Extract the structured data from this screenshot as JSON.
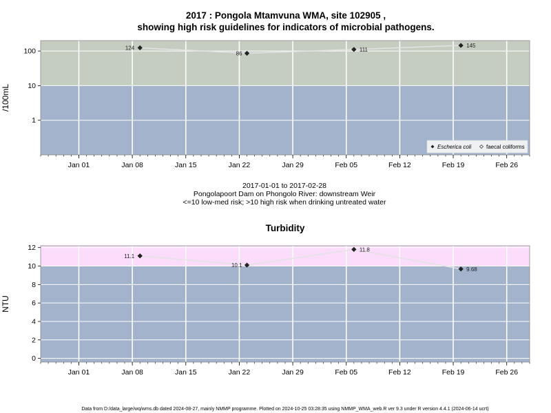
{
  "page": {
    "title_line1": "2017 : Pongola Mtamvuna WMA, site 102905 ,",
    "title_line2": "showing high risk guidelines for indicators of microbial pathogens.",
    "date_range": "2017-01-01 to 2017-02-28",
    "site_description": "Pongolapoort Dam on Phongolo River: downstream Weir",
    "risk_note": "<=10 low-med risk; >10 high risk when drinking untreated water",
    "footer": "Data from D:/data_large/wq/wms.db dated 2024-08-27, mainly NMMP programme. Plotted on 2024-10-25 03:28:35 using NMMP_WMA_web.R ver 9.3 under R version 4.4.1 (2024-06-14 ucrt)"
  },
  "chart_data": [
    {
      "type": "scatter",
      "title": "",
      "ylabel": "/100mL",
      "yscale": "log",
      "ylim": [
        0.1,
        200
      ],
      "yticks": [
        1,
        10,
        100
      ],
      "ytick_labels": [
        "1",
        "10",
        "100"
      ],
      "xlim": [
        "2016-12-27",
        "2017-03-01"
      ],
      "xticks": [
        "2017-01-01",
        "2017-01-08",
        "2017-01-15",
        "2017-01-22",
        "2017-01-29",
        "2017-02-05",
        "2017-02-12",
        "2017-02-19",
        "2017-02-26"
      ],
      "xtick_labels": [
        "Jan 01",
        "Jan 08",
        "Jan 15",
        "Jan 22",
        "Jan 29",
        "Feb 05",
        "Feb 12",
        "Feb 19",
        "Feb 26"
      ],
      "grid": true,
      "bands": [
        {
          "from": 0.1,
          "to": 10,
          "color": "#a2b3cb",
          "meaning": "low-med risk"
        },
        {
          "from": 10,
          "to": 200,
          "color": "#c5cdc1",
          "meaning": "high risk"
        }
      ],
      "line_color": "#e3e3e3",
      "legend": {
        "position": "bottom-right",
        "entries": [
          {
            "name": "Escherica coli",
            "marker": "filled-diamond",
            "italic": true
          },
          {
            "name": "faecal coliforms",
            "marker": "open-diamond",
            "italic": false
          }
        ]
      },
      "series": [
        {
          "name": "Escherica coli",
          "marker": "filled-diamond",
          "x": [
            "2017-01-09",
            "2017-01-23",
            "2017-02-06",
            "2017-02-20"
          ],
          "y": [
            124,
            86,
            111,
            145
          ],
          "labels": [
            "124",
            "86",
            "111",
            "145"
          ]
        }
      ]
    },
    {
      "type": "scatter",
      "title": "Turbidity",
      "ylabel": "NTU",
      "yscale": "linear",
      "ylim": [
        -0.4,
        12.2
      ],
      "yticks": [
        0,
        2,
        4,
        6,
        8,
        10,
        12
      ],
      "ytick_labels": [
        "0",
        "2",
        "4",
        "6",
        "8",
        "10",
        "12"
      ],
      "xlim": [
        "2016-12-27",
        "2017-03-01"
      ],
      "xticks": [
        "2017-01-01",
        "2017-01-08",
        "2017-01-15",
        "2017-01-22",
        "2017-01-29",
        "2017-02-05",
        "2017-02-12",
        "2017-02-19",
        "2017-02-26"
      ],
      "xtick_labels": [
        "Jan 01",
        "Jan 08",
        "Jan 15",
        "Jan 22",
        "Jan 29",
        "Feb 05",
        "Feb 12",
        "Feb 19",
        "Feb 26"
      ],
      "grid": true,
      "bands": [
        {
          "from": -0.4,
          "to": 10,
          "color": "#a2b3cb",
          "meaning": "low-med risk"
        },
        {
          "from": 10,
          "to": 12.2,
          "color": "#fbdcfb",
          "meaning": "high risk"
        }
      ],
      "line_color": "#e3e3e3",
      "series": [
        {
          "name": "Turbidity",
          "marker": "filled-diamond",
          "x": [
            "2017-01-09",
            "2017-01-23",
            "2017-02-06",
            "2017-02-20"
          ],
          "y": [
            11.1,
            10.1,
            11.8,
            9.68
          ],
          "labels": [
            "11.1",
            "10.1",
            "11.8",
            "9.68"
          ]
        }
      ]
    }
  ]
}
